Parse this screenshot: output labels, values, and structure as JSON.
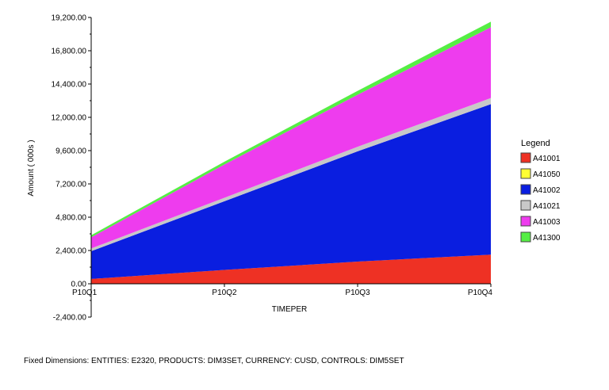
{
  "chart_data": {
    "type": "area",
    "stacked": true,
    "xlabel": "TIMEPER",
    "ylabel": "Amount ( 000s )",
    "categories": [
      "P10Q1",
      "P10Q2",
      "P10Q3",
      "P10Q4"
    ],
    "ylim": [
      -2400,
      19200
    ],
    "yticks": [
      "-2,400.00",
      "0.00",
      "2,400.00",
      "4,800.00",
      "7,200.00",
      "9,600.00",
      "12,000.00",
      "14,400.00",
      "16,800.00",
      "19,200.00"
    ],
    "grid": false,
    "legend_title": "Legend",
    "legend_position": "right",
    "series": [
      {
        "name": "A41001",
        "color": "#ee3124",
        "values": [
          350,
          1000,
          1600,
          2100
        ]
      },
      {
        "name": "A41050",
        "color": "#ffff33",
        "values": [
          0,
          0,
          0,
          0
        ]
      },
      {
        "name": "A41002",
        "color": "#0a1ee0",
        "values": [
          2000,
          4950,
          7950,
          10850
        ]
      },
      {
        "name": "A41021",
        "color": "#c8c8c8",
        "values": [
          200,
          250,
          330,
          440
        ]
      },
      {
        "name": "A41003",
        "color": "#ee3cee",
        "values": [
          800,
          2400,
          3750,
          5100
        ]
      },
      {
        "name": "A41300",
        "color": "#55ee44",
        "values": [
          150,
          200,
          280,
          400
        ]
      }
    ]
  },
  "footer": {
    "text": "Fixed Dimensions: ENTITIES: E2320, PRODUCTS: DIM3SET, CURRENCY: CUSD, CONTROLS: DIM5SET"
  }
}
